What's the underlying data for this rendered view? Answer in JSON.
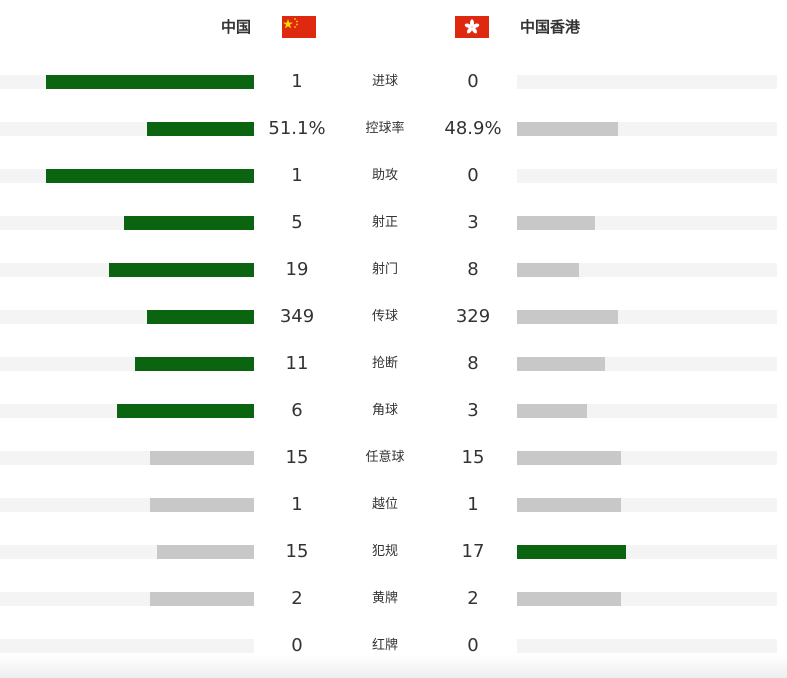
{
  "home": {
    "name": "中国",
    "flag_icon": "china-flag-icon",
    "flag_color": "#de2910"
  },
  "away": {
    "name": "中国香港",
    "flag_icon": "hong-kong-flag-icon",
    "flag_color": "#de2910"
  },
  "colors": {
    "leading_bar": "#0a6410",
    "trailing_bar": "#c8c8c8",
    "track": "#f4f4f4"
  },
  "stats": [
    {
      "label": "进球",
      "home": "1",
      "away": "0",
      "home_share": 0.82,
      "away_share": 0.0,
      "home_leads": true,
      "away_leads": false
    },
    {
      "label": "控球率",
      "home": "51.1%",
      "away": "48.9%",
      "home_share": 0.42,
      "away_share": 0.39,
      "home_leads": true,
      "away_leads": false
    },
    {
      "label": "助攻",
      "home": "1",
      "away": "0",
      "home_share": 0.82,
      "away_share": 0.0,
      "home_leads": true,
      "away_leads": false
    },
    {
      "label": "射正",
      "home": "5",
      "away": "3",
      "home_share": 0.51,
      "away_share": 0.3,
      "home_leads": true,
      "away_leads": false
    },
    {
      "label": "射门",
      "home": "19",
      "away": "8",
      "home_share": 0.57,
      "away_share": 0.24,
      "home_leads": true,
      "away_leads": false
    },
    {
      "label": "传球",
      "home": "349",
      "away": "329",
      "home_share": 0.42,
      "away_share": 0.39,
      "home_leads": true,
      "away_leads": false
    },
    {
      "label": "抢断",
      "home": "11",
      "away": "8",
      "home_share": 0.47,
      "away_share": 0.34,
      "home_leads": true,
      "away_leads": false
    },
    {
      "label": "角球",
      "home": "6",
      "away": "3",
      "home_share": 0.54,
      "away_share": 0.27,
      "home_leads": true,
      "away_leads": false
    },
    {
      "label": "任意球",
      "home": "15",
      "away": "15",
      "home_share": 0.41,
      "away_share": 0.4,
      "home_leads": false,
      "away_leads": false
    },
    {
      "label": "越位",
      "home": "1",
      "away": "1",
      "home_share": 0.41,
      "away_share": 0.4,
      "home_leads": false,
      "away_leads": false
    },
    {
      "label": "犯规",
      "home": "15",
      "away": "17",
      "home_share": 0.38,
      "away_share": 0.42,
      "home_leads": false,
      "away_leads": true
    },
    {
      "label": "黄牌",
      "home": "2",
      "away": "2",
      "home_share": 0.41,
      "away_share": 0.4,
      "home_leads": false,
      "away_leads": false
    },
    {
      "label": "红牌",
      "home": "0",
      "away": "0",
      "home_share": 0.0,
      "away_share": 0.0,
      "home_leads": false,
      "away_leads": false
    }
  ]
}
